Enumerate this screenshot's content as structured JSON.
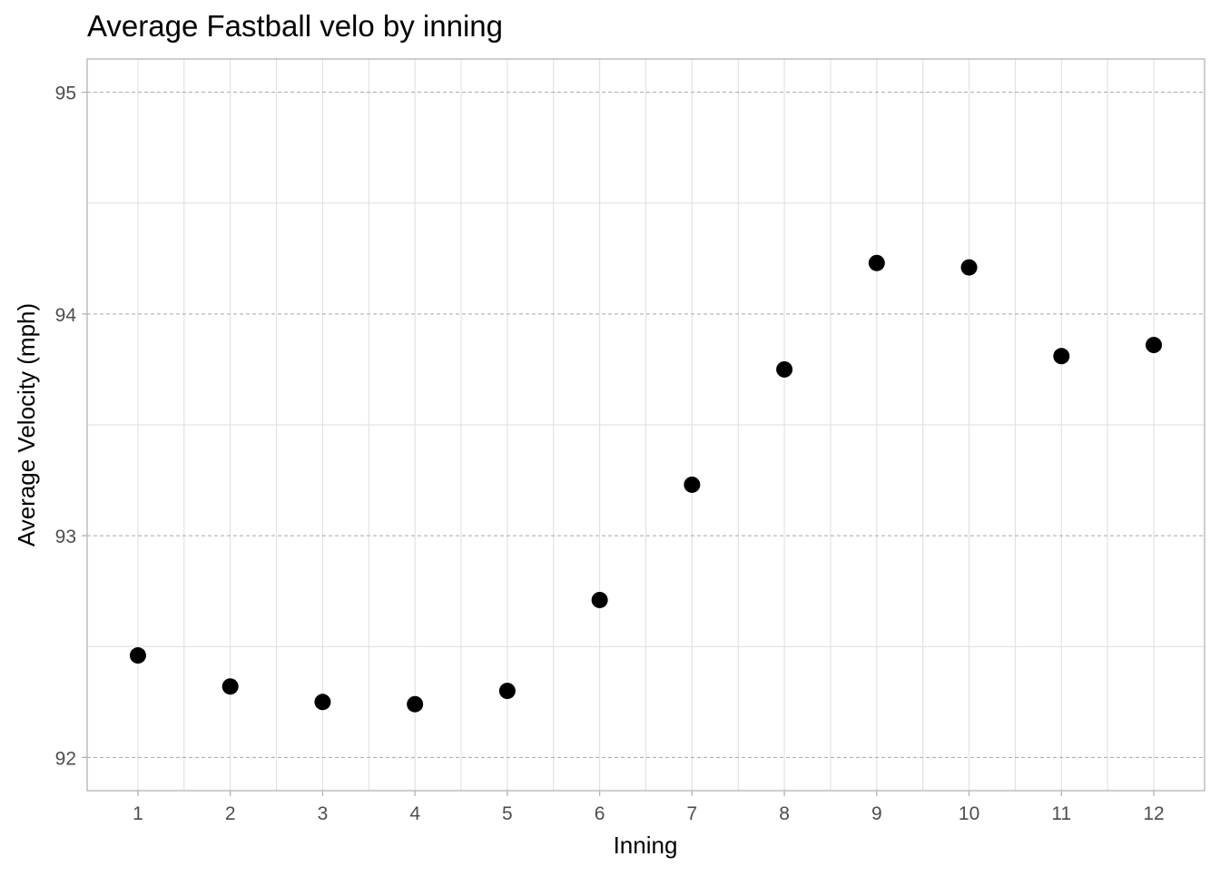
{
  "chart_data": {
    "type": "scatter",
    "title": "Average Fastball velo by inning",
    "xlabel": "Inning",
    "ylabel": "Average Velocity (mph)",
    "x": [
      1,
      2,
      3,
      4,
      5,
      6,
      7,
      8,
      9,
      10,
      11,
      12
    ],
    "y": [
      92.46,
      92.32,
      92.25,
      92.24,
      92.3,
      92.71,
      93.23,
      93.75,
      94.23,
      94.21,
      93.81,
      93.86
    ],
    "xticks": [
      1,
      2,
      3,
      4,
      5,
      6,
      7,
      8,
      9,
      10,
      11,
      12
    ],
    "yticks": [
      92,
      93,
      94,
      95
    ],
    "xlim": [
      0.45,
      12.55
    ],
    "ylim": [
      91.85,
      95.15
    ],
    "grid": true,
    "legend": "none",
    "colors": {
      "point": "#000000",
      "grid_major": "#a6a6a6",
      "grid_minor": "#dedede",
      "axis_text": "#4d4d4d",
      "panel_border": "#b3b3b3"
    }
  }
}
